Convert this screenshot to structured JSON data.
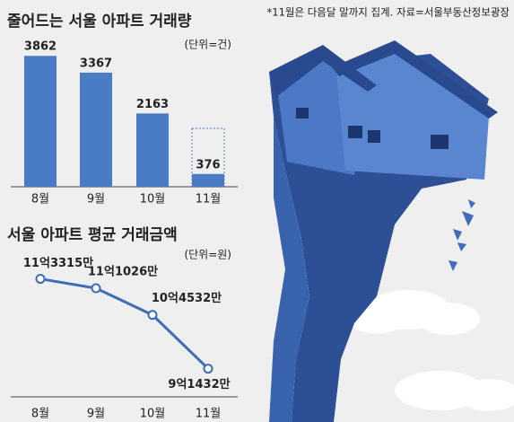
{
  "note": "*11월은 다음달 말까지 집계. 자료=서울부동산정보광장",
  "chart_data": [
    {
      "type": "bar",
      "title": "줄어드는 서울 아파트 거래량",
      "unit": "(단위=건)",
      "categories": [
        "8월",
        "9월",
        "10월",
        "11월"
      ],
      "values": [
        3862,
        3367,
        2163,
        376
      ],
      "color": "#4a7cc6",
      "ylim": [
        0,
        4000
      ]
    },
    {
      "type": "line",
      "title": "서울 아파트 평균 거래금액",
      "unit": "(단위=원)",
      "categories": [
        "8월",
        "9월",
        "10월",
        "11월"
      ],
      "values": [
        1133150000,
        1110260000,
        1045320000,
        914320000
      ],
      "value_labels": [
        "11억3315만",
        "11억1026만",
        "10억4532만",
        "9억1432만"
      ],
      "color": "#3d6cb8",
      "ylim": [
        850000000,
        1200000000
      ]
    }
  ]
}
